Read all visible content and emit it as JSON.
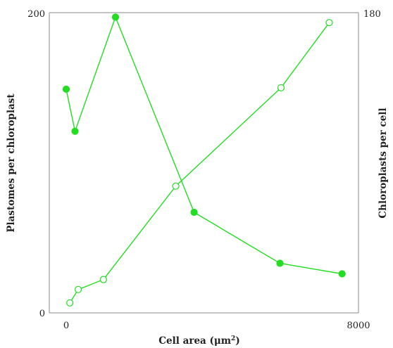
{
  "chart_data": {
    "type": "line",
    "xlabel": "Cell area (μm",
    "xlabel_sup": "2",
    "xlabel_close": ")",
    "ylabel_left": "Plastomes per chloroplast",
    "ylabel_right": "Chloroplasts per cell",
    "x_ticks": [
      "0",
      "8000"
    ],
    "y_left_ticks": [
      "0",
      "200"
    ],
    "y_right_tick": "180",
    "xlim": [
      0,
      8000
    ],
    "ylim_left": [
      0,
      200
    ],
    "ylim_right": [
      0,
      180
    ],
    "grid": false,
    "series_color": "#22dd22",
    "series": [
      {
        "axis": "left",
        "marker": "filled",
        "points": [
          {
            "x": 0,
            "y": 149
          },
          {
            "x": 240,
            "y": 121
          },
          {
            "x": 1350,
            "y": 197
          },
          {
            "x": 3500,
            "y": 67
          },
          {
            "x": 5850,
            "y": 33
          },
          {
            "x": 7550,
            "y": 26
          }
        ]
      },
      {
        "axis": "right",
        "marker": "open",
        "points": [
          {
            "x": 100,
            "y": 6
          },
          {
            "x": 330,
            "y": 14
          },
          {
            "x": 1020,
            "y": 20
          },
          {
            "x": 3000,
            "y": 76
          },
          {
            "x": 5880,
            "y": 135
          },
          {
            "x": 7200,
            "y": 174
          }
        ]
      }
    ]
  }
}
